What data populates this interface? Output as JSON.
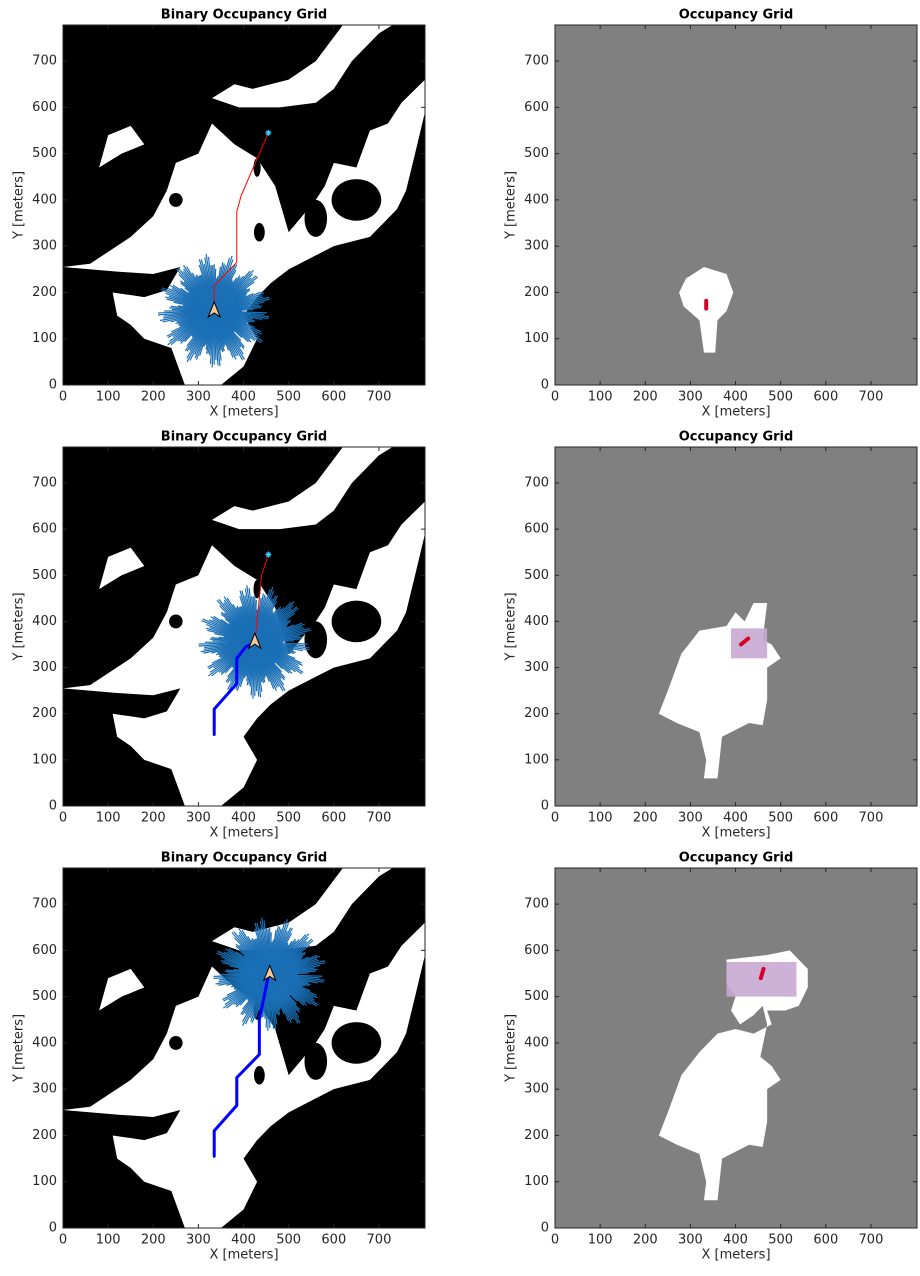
{
  "chart_data": [
    {
      "type": "binary-map",
      "title": "Binary Occupancy Grid",
      "xlabel": "X [meters]",
      "ylabel": "Y [meters]",
      "xlim": [
        0,
        802
      ],
      "ylim": [
        0,
        778
      ],
      "xticks": [
        0,
        100,
        200,
        300,
        400,
        500,
        600,
        700
      ],
      "yticks": [
        0,
        100,
        200,
        300,
        400,
        500,
        600,
        700
      ],
      "background": "#000000",
      "paths": [
        {
          "color": "#ff0000",
          "line_width": 1,
          "x": [
            335,
            335,
            385,
            385,
            395,
            455
          ],
          "y": [
            170,
            215,
            265,
            375,
            410,
            545
          ]
        }
      ],
      "robot": {
        "x": 335,
        "y": 160,
        "color": "#f5c89a"
      },
      "goal": {
        "x": 455,
        "y": 545,
        "color": "#33ccff"
      }
    },
    {
      "type": "occupancy-map",
      "title": "Occupancy Grid",
      "xlabel": "X [meters]",
      "ylabel": "Y [meters]",
      "xlim": [
        0,
        802
      ],
      "ylim": [
        0,
        778
      ],
      "xticks": [
        0,
        100,
        200,
        300,
        400,
        500,
        600,
        700
      ],
      "yticks": [
        0,
        100,
        200,
        300,
        400,
        500,
        600,
        700
      ],
      "background": "#808080",
      "paths": [
        {
          "color": "#d4002a",
          "line_width": 4,
          "x": [
            335,
            335
          ],
          "y": [
            165,
            182
          ]
        }
      ]
    },
    {
      "type": "binary-map",
      "title": "Binary Occupancy Grid",
      "xlabel": "X [meters]",
      "ylabel": "Y [meters]",
      "xlim": [
        0,
        802
      ],
      "ylim": [
        0,
        778
      ],
      "xticks": [
        0,
        100,
        200,
        300,
        400,
        500,
        600,
        700
      ],
      "yticks": [
        0,
        100,
        200,
        300,
        400,
        500,
        600,
        700
      ],
      "background": "#000000",
      "paths": [
        {
          "color": "#0000ff",
          "line_width": 3,
          "x": [
            335,
            335,
            385,
            385,
            405,
            425
          ],
          "y": [
            155,
            210,
            265,
            320,
            345,
            355
          ]
        },
        {
          "color": "#ff0000",
          "line_width": 1,
          "x": [
            425,
            435,
            440,
            455
          ],
          "y": [
            355,
            450,
            500,
            545
          ]
        }
      ],
      "robot": {
        "x": 425,
        "y": 355,
        "color": "#f5c89a"
      },
      "goal": {
        "x": 455,
        "y": 545,
        "color": "#33ccff"
      }
    },
    {
      "type": "occupancy-map",
      "title": "Occupancy Grid",
      "xlabel": "X [meters]",
      "ylabel": "Y [meters]",
      "xlim": [
        0,
        802
      ],
      "ylim": [
        0,
        778
      ],
      "xticks": [
        0,
        100,
        200,
        300,
        400,
        500,
        600,
        700
      ],
      "yticks": [
        0,
        100,
        200,
        300,
        400,
        500,
        600,
        700
      ],
      "background": "#808080",
      "local_map": {
        "x": [
          390,
          470
        ],
        "y": [
          320,
          385
        ],
        "color": "#c9a9d2"
      },
      "paths": [
        {
          "color": "#d4002a",
          "line_width": 4,
          "x": [
            412,
            428
          ],
          "y": [
            350,
            363
          ]
        }
      ]
    },
    {
      "type": "binary-map",
      "title": "Binary Occupancy Grid",
      "xlabel": "X [meters]",
      "ylabel": "Y [meters]",
      "xlim": [
        0,
        802
      ],
      "ylim": [
        0,
        778
      ],
      "xticks": [
        0,
        100,
        200,
        300,
        400,
        500,
        600,
        700
      ],
      "yticks": [
        0,
        100,
        200,
        300,
        400,
        500,
        600,
        700
      ],
      "background": "#000000",
      "paths": [
        {
          "color": "#0000ff",
          "line_width": 3,
          "x": [
            335,
            335,
            385,
            385,
            435,
            435,
            455
          ],
          "y": [
            155,
            210,
            265,
            325,
            375,
            450,
            545
          ]
        }
      ],
      "robot": {
        "x": 458,
        "y": 548,
        "color": "#f5c89a"
      }
    },
    {
      "type": "occupancy-map",
      "title": "Occupancy Grid",
      "xlabel": "X [meters]",
      "ylabel": "Y [meters]",
      "xlim": [
        0,
        802
      ],
      "ylim": [
        0,
        778
      ],
      "xticks": [
        0,
        100,
        200,
        300,
        400,
        500,
        600,
        700
      ],
      "yticks": [
        0,
        100,
        200,
        300,
        400,
        500,
        600,
        700
      ],
      "background": "#808080",
      "local_map": {
        "x": [
          380,
          535
        ],
        "y": [
          500,
          575
        ],
        "color": "#c9a9d2"
      },
      "paths": [
        {
          "color": "#d4002a",
          "line_width": 4,
          "x": [
            456,
            462
          ],
          "y": [
            540,
            560
          ]
        }
      ]
    }
  ]
}
